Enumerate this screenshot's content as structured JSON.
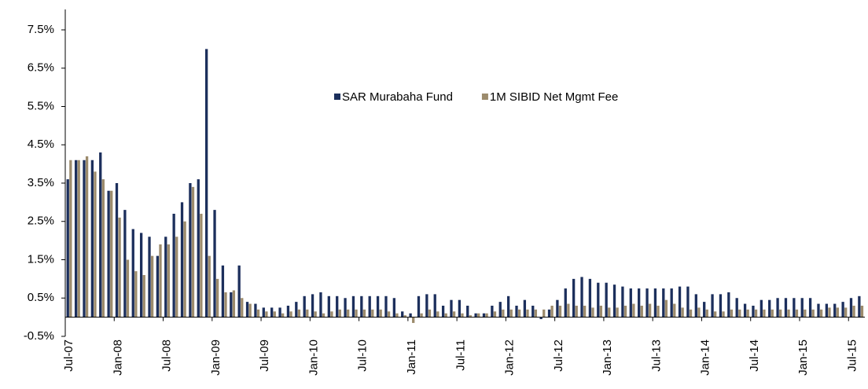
{
  "chart_data": {
    "type": "bar",
    "categories": [
      "Jul-07",
      null,
      null,
      null,
      null,
      null,
      "Jan-08",
      null,
      null,
      null,
      null,
      null,
      "Jul-08",
      null,
      null,
      null,
      null,
      null,
      "Jan-09",
      null,
      null,
      null,
      null,
      null,
      "Jul-09",
      null,
      null,
      null,
      null,
      null,
      "Jan-10",
      null,
      null,
      null,
      null,
      null,
      "Jul-10",
      null,
      null,
      null,
      null,
      null,
      "Jan-11",
      null,
      null,
      null,
      null,
      null,
      "Jul-11",
      null,
      null,
      null,
      null,
      null,
      "Jan-12",
      null,
      null,
      null,
      null,
      null,
      "Jul-12",
      null,
      null,
      null,
      null,
      null,
      "Jan-13",
      null,
      null,
      null,
      null,
      null,
      "Jul-13",
      null,
      null,
      null,
      null,
      null,
      "Jan-14",
      null,
      null,
      null,
      null,
      null,
      "Jul-14",
      null,
      null,
      null,
      null,
      null,
      "Jan-15",
      null,
      null,
      null,
      null,
      null,
      "Jul-15",
      null
    ],
    "series": [
      {
        "name": "SAR Murabaha Fund",
        "color": "#1c2f5c",
        "values": [
          3.6,
          4.1,
          4.1,
          4.1,
          4.3,
          3.3,
          3.5,
          2.8,
          2.3,
          2.2,
          2.1,
          1.6,
          2.1,
          2.7,
          3.0,
          3.5,
          3.6,
          7.0,
          2.8,
          1.35,
          0.65,
          1.35,
          0.4,
          0.35,
          0.25,
          0.25,
          0.25,
          0.3,
          0.4,
          0.55,
          0.6,
          0.65,
          0.55,
          0.55,
          0.5,
          0.55,
          0.55,
          0.55,
          0.55,
          0.55,
          0.5,
          0.15,
          0.1,
          0.55,
          0.6,
          0.6,
          0.3,
          0.45,
          0.45,
          0.3,
          0.1,
          0.1,
          0.3,
          0.4,
          0.55,
          0.3,
          0.45,
          0.3,
          -0.05,
          0.2,
          0.45,
          0.75,
          1.0,
          1.05,
          1.0,
          0.9,
          0.9,
          0.85,
          0.8,
          0.75,
          0.75,
          0.75,
          0.75,
          0.75,
          0.75,
          0.8,
          0.8,
          0.6,
          0.4,
          0.6,
          0.6,
          0.65,
          0.5,
          0.35,
          0.3,
          0.45,
          0.45,
          0.5,
          0.5,
          0.5,
          0.5,
          0.5,
          0.35,
          0.35,
          0.35,
          0.4,
          0.5,
          0.55
        ]
      },
      {
        "name": "1M SIBID Net Mgmt Fee",
        "color": "#9c8b6c",
        "values": [
          4.1,
          4.1,
          4.2,
          3.8,
          3.6,
          3.3,
          2.6,
          1.5,
          1.2,
          1.1,
          1.6,
          1.9,
          1.9,
          2.1,
          2.5,
          3.4,
          2.7,
          1.6,
          1.0,
          0.65,
          0.7,
          0.5,
          0.35,
          0.2,
          0.15,
          0.15,
          0.1,
          0.15,
          0.2,
          0.2,
          0.15,
          0.1,
          0.15,
          0.2,
          0.2,
          0.2,
          0.2,
          0.2,
          0.2,
          0.15,
          0.1,
          0.05,
          -0.15,
          0.1,
          0.2,
          0.15,
          0.1,
          0.15,
          0.1,
          0.05,
          0.1,
          0.1,
          0.15,
          0.2,
          0.2,
          0.2,
          0.2,
          0.2,
          0.2,
          0.3,
          0.3,
          0.35,
          0.3,
          0.3,
          0.25,
          0.3,
          0.25,
          0.25,
          0.3,
          0.35,
          0.3,
          0.35,
          0.3,
          0.45,
          0.35,
          0.25,
          0.2,
          0.25,
          0.2,
          0.15,
          0.15,
          0.2,
          0.2,
          0.2,
          0.2,
          0.2,
          0.2,
          0.2,
          0.2,
          0.2,
          0.2,
          0.2,
          0.2,
          0.25,
          0.25,
          0.25,
          0.3,
          0.3
        ]
      }
    ],
    "ylim": [
      -0.5,
      7.5
    ],
    "yticks": [
      {
        "value": -0.5,
        "label": "-0.5%"
      },
      {
        "value": 0.5,
        "label": "0.5%"
      },
      {
        "value": 1.5,
        "label": "1.5%"
      },
      {
        "value": 2.5,
        "label": "2.5%"
      },
      {
        "value": 3.5,
        "label": "3.5%"
      },
      {
        "value": 4.5,
        "label": "4.5%"
      },
      {
        "value": 5.5,
        "label": "5.5%"
      },
      {
        "value": 6.5,
        "label": "6.5%"
      },
      {
        "value": 7.5,
        "label": "7.5%"
      }
    ],
    "legend": "upper center",
    "grid": false
  }
}
